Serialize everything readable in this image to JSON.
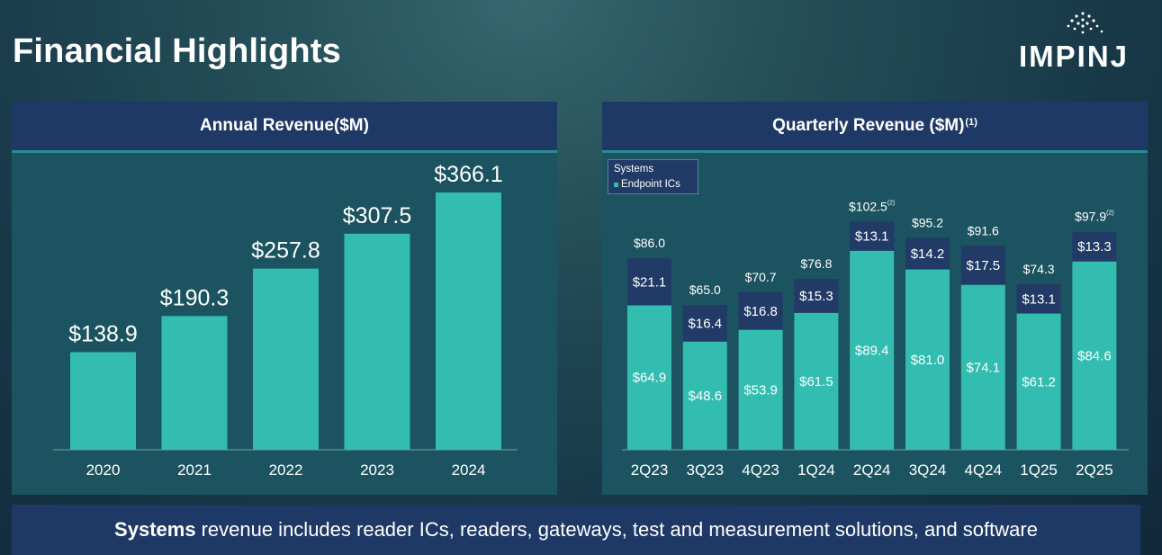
{
  "page": {
    "title": "Financial Highlights",
    "logo_text": "IMPINJ",
    "footer_bold": "Systems",
    "footer_text": "revenue includes reader ICs, readers, gateways, test and measurement solutions, and software"
  },
  "colors": {
    "bar_teal": "#33bcb0",
    "systems_navy": "#213a66",
    "header_navy": "#1f3967",
    "panel_teal": "#1c5360"
  },
  "annual": {
    "title": "Annual Revenue($M)"
  },
  "quarterly": {
    "title": "Quarterly Revenue ($M)",
    "title_note": "(1)"
  },
  "legend": {
    "systems_label": "Systems",
    "endpoint_label": "Endpoint ICs"
  },
  "chart_data": [
    {
      "type": "bar",
      "title": "Annual Revenue($M)",
      "categories": [
        "2020",
        "2021",
        "2022",
        "2023",
        "2024"
      ],
      "values": [
        138.9,
        190.3,
        257.8,
        307.5,
        366.1
      ],
      "labels": [
        "$138.9",
        "$190.3",
        "$257.8",
        "$307.5",
        "$366.1"
      ],
      "ylim": [
        0,
        366.1
      ],
      "grid": false
    },
    {
      "type": "bar",
      "stacked": true,
      "title": "Quarterly Revenue ($M)",
      "categories": [
        "2Q23",
        "3Q23",
        "4Q23",
        "1Q24",
        "2Q24",
        "3Q24",
        "4Q24",
        "1Q25",
        "2Q25"
      ],
      "series": [
        {
          "name": "Endpoint ICs",
          "values": [
            64.9,
            48.6,
            53.9,
            61.5,
            89.4,
            81.0,
            74.1,
            61.2,
            84.6
          ],
          "labels": [
            "$64.9",
            "$48.6",
            "$53.9",
            "$61.5",
            "$89.4",
            "$81.0",
            "$74.1",
            "$61.2",
            "$84.6"
          ]
        },
        {
          "name": "Systems",
          "values": [
            21.1,
            16.4,
            16.8,
            15.3,
            13.1,
            14.2,
            17.5,
            13.1,
            13.3
          ],
          "labels": [
            "$21.1",
            "$16.4",
            "$16.8",
            "$15.3",
            "$13.1",
            "$14.2",
            "$17.5",
            "$13.1",
            "$13.3"
          ]
        }
      ],
      "totals": [
        86.0,
        65.0,
        70.7,
        76.8,
        102.5,
        95.2,
        91.6,
        74.3,
        97.9
      ],
      "total_labels": [
        "$86.0",
        "$65.0",
        "$70.7",
        "$76.8",
        "$102.5",
        "$95.2",
        "$91.6",
        "$74.3",
        "$97.9"
      ],
      "total_notes": [
        "",
        "",
        "",
        "",
        "(2)",
        "",
        "",
        "",
        "(2)"
      ],
      "legend_position": "top-left",
      "grid": false
    }
  ]
}
